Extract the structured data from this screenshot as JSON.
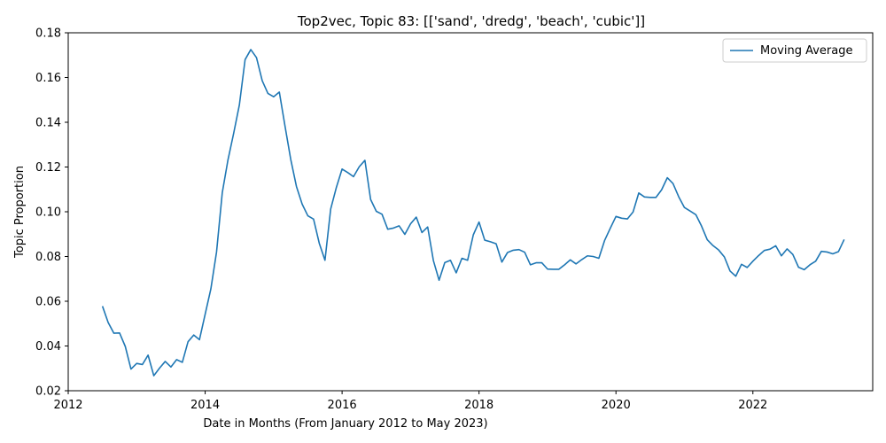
{
  "chart_data": {
    "type": "line",
    "title": "Top2vec, Topic 83: [['sand', 'dredg', 'beach', 'cubic']]",
    "xlabel": "Date in Months (From January 2012 to May 2023)",
    "ylabel": "Topic Proportion",
    "xlim": [
      "2012-01",
      "2023-10"
    ],
    "ylim": [
      0.02,
      0.18
    ],
    "x_ticks": [
      "2012",
      "2014",
      "2016",
      "2018",
      "2020",
      "2022"
    ],
    "y_ticks": [
      "0.02",
      "0.04",
      "0.06",
      "0.08",
      "0.10",
      "0.12",
      "0.14",
      "0.16",
      "0.18"
    ],
    "grid": false,
    "legend": {
      "placement": "top-right",
      "entries": [
        "Moving Average"
      ]
    },
    "series": [
      {
        "name": "Moving Average",
        "color": "#1f77b4",
        "x": [
          "2012-07",
          "2012-08",
          "2012-09",
          "2012-10",
          "2012-11",
          "2012-12",
          "2013-01",
          "2013-02",
          "2013-03",
          "2013-04",
          "2013-05",
          "2013-06",
          "2013-07",
          "2013-08",
          "2013-09",
          "2013-10",
          "2013-11",
          "2013-12",
          "2014-01",
          "2014-02",
          "2014-03",
          "2014-04",
          "2014-05",
          "2014-06",
          "2014-07",
          "2014-08",
          "2014-09",
          "2014-10",
          "2014-11",
          "2014-12",
          "2015-01",
          "2015-02",
          "2015-03",
          "2015-04",
          "2015-05",
          "2015-06",
          "2015-07",
          "2015-08",
          "2015-09",
          "2015-10",
          "2015-11",
          "2015-12",
          "2016-01",
          "2016-02",
          "2016-03",
          "2016-04",
          "2016-05",
          "2016-06",
          "2016-07",
          "2016-08",
          "2016-09",
          "2016-10",
          "2016-11",
          "2016-12",
          "2017-01",
          "2017-02",
          "2017-03",
          "2017-04",
          "2017-05",
          "2017-06",
          "2017-07",
          "2017-08",
          "2017-09",
          "2017-10",
          "2017-11",
          "2017-12",
          "2018-01",
          "2018-02",
          "2018-03",
          "2018-04",
          "2018-05",
          "2018-06",
          "2018-07",
          "2018-08",
          "2018-09",
          "2018-10",
          "2018-11",
          "2018-12",
          "2019-01",
          "2019-02",
          "2019-03",
          "2019-04",
          "2019-05",
          "2019-06",
          "2019-07",
          "2019-08",
          "2019-09",
          "2019-10",
          "2019-11",
          "2019-12",
          "2020-01",
          "2020-02",
          "2020-03",
          "2020-04",
          "2020-05",
          "2020-06",
          "2020-07",
          "2020-08",
          "2020-09",
          "2020-10",
          "2020-11",
          "2020-12",
          "2021-01",
          "2021-02",
          "2021-03",
          "2021-04",
          "2021-05",
          "2021-06",
          "2021-07",
          "2021-08",
          "2021-09",
          "2021-10",
          "2021-11",
          "2021-12",
          "2022-01",
          "2022-02",
          "2022-03",
          "2022-04",
          "2022-05",
          "2022-06",
          "2022-07",
          "2022-08",
          "2022-09",
          "2022-10",
          "2022-11",
          "2022-12",
          "2023-01",
          "2023-02",
          "2023-03",
          "2023-04",
          "2023-05"
        ],
        "y": [
          0.0578,
          0.0505,
          0.0457,
          0.0458,
          0.0398,
          0.0297,
          0.0322,
          0.0317,
          0.0359,
          0.0267,
          0.0301,
          0.0331,
          0.0306,
          0.0339,
          0.0327,
          0.0419,
          0.0449,
          0.0428,
          0.0542,
          0.0655,
          0.0821,
          0.1085,
          0.1232,
          0.1351,
          0.1478,
          0.168,
          0.1725,
          0.1689,
          0.1586,
          0.1529,
          0.1514,
          0.1535,
          0.1382,
          0.1234,
          0.1113,
          0.1034,
          0.0982,
          0.0967,
          0.0859,
          0.0783,
          0.1012,
          0.1109,
          0.1191,
          0.1175,
          0.1157,
          0.1201,
          0.123,
          0.1055,
          0.1002,
          0.0989,
          0.0922,
          0.0927,
          0.0937,
          0.0899,
          0.0946,
          0.0976,
          0.0907,
          0.0932,
          0.0782,
          0.0694,
          0.0773,
          0.0783,
          0.0727,
          0.0792,
          0.0783,
          0.0897,
          0.0954,
          0.0873,
          0.0866,
          0.0857,
          0.0775,
          0.0818,
          0.0828,
          0.0831,
          0.0819,
          0.0763,
          0.0772,
          0.0772,
          0.0744,
          0.0743,
          0.0743,
          0.0763,
          0.0785,
          0.0767,
          0.0786,
          0.0803,
          0.08,
          0.0792,
          0.0871,
          0.0926,
          0.0979,
          0.0971,
          0.0968,
          0.0999,
          0.1084,
          0.1066,
          0.1064,
          0.1064,
          0.1098,
          0.1152,
          0.1126,
          0.1067,
          0.1019,
          0.1003,
          0.0987,
          0.0936,
          0.0875,
          0.0849,
          0.0829,
          0.0798,
          0.0735,
          0.0712,
          0.0765,
          0.0751,
          0.0779,
          0.0804,
          0.0827,
          0.0833,
          0.0848,
          0.0803,
          0.0834,
          0.0809,
          0.0752,
          0.0741,
          0.0763,
          0.0779,
          0.0823,
          0.082,
          0.0812,
          0.0822,
          0.0876
        ]
      }
    ]
  }
}
